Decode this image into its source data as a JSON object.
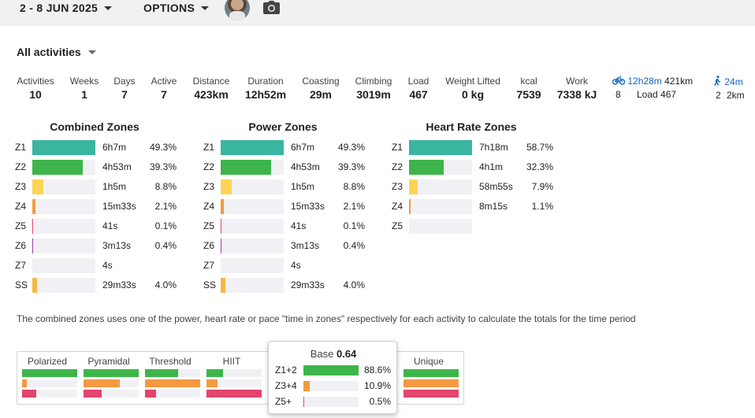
{
  "header": {
    "date_range": "2 - 8 JUN 2025",
    "options_label": "OPTIONS"
  },
  "filter": {
    "label": "All activities"
  },
  "stats": [
    {
      "label": "Activities",
      "value": "10"
    },
    {
      "label": "Weeks",
      "value": "1"
    },
    {
      "label": "Days",
      "value": "7"
    },
    {
      "label": "Active",
      "value": "7"
    },
    {
      "label": "Distance",
      "value": "423km"
    },
    {
      "label": "Duration",
      "value": "12h52m"
    },
    {
      "label": "Coasting",
      "value": "29m"
    },
    {
      "label": "Climbing",
      "value": "3019m"
    },
    {
      "label": "Load",
      "value": "467"
    },
    {
      "label": "Weight Lifted",
      "value": "0 kg"
    },
    {
      "label": "kcal",
      "value": "7539"
    },
    {
      "label": "Work",
      "value": "7338 kJ"
    }
  ],
  "sports": {
    "ride": {
      "icon": "bike-icon",
      "time": "12h28m",
      "distance": "421km",
      "count": "8",
      "load": "Load 467"
    },
    "walk": {
      "icon": "walk-icon",
      "time": "24m",
      "count": "2",
      "distance": "2km"
    }
  },
  "zones": {
    "combined": {
      "title": "Combined Zones",
      "rows": [
        {
          "zone": "Z1",
          "time": "6h7m",
          "pct": "49.3%",
          "level": 1.0,
          "color": "#3ab5a0"
        },
        {
          "zone": "Z2",
          "time": "4h53m",
          "pct": "39.3%",
          "level": 0.8,
          "color": "#3db54a"
        },
        {
          "zone": "Z3",
          "time": "1h5m",
          "pct": "8.8%",
          "level": 0.18,
          "color": "#fcd455"
        },
        {
          "zone": "Z4",
          "time": "15m33s",
          "pct": "2.1%",
          "level": 0.05,
          "color": "#f39a42"
        },
        {
          "zone": "Z5",
          "time": "41s",
          "pct": "0.1%",
          "level": 0.012,
          "color": "#e2456d"
        },
        {
          "zone": "Z6",
          "time": "3m13s",
          "pct": "0.4%",
          "level": 0.015,
          "color": "#9c3aa8"
        },
        {
          "zone": "Z7",
          "time": "4s",
          "pct": "",
          "level": 0.0,
          "color": "#444444"
        },
        {
          "zone": "SS",
          "time": "29m33s",
          "pct": "4.0%",
          "level": 0.08,
          "color": "#f5b942"
        }
      ]
    },
    "power": {
      "title": "Power Zones",
      "rows": [
        {
          "zone": "Z1",
          "time": "6h7m",
          "pct": "49.3%",
          "level": 1.0,
          "color": "#3ab5a0"
        },
        {
          "zone": "Z2",
          "time": "4h53m",
          "pct": "39.3%",
          "level": 0.8,
          "color": "#3db54a"
        },
        {
          "zone": "Z3",
          "time": "1h5m",
          "pct": "8.8%",
          "level": 0.18,
          "color": "#fcd455"
        },
        {
          "zone": "Z4",
          "time": "15m33s",
          "pct": "2.1%",
          "level": 0.05,
          "color": "#f39a42"
        },
        {
          "zone": "Z5",
          "time": "41s",
          "pct": "0.1%",
          "level": 0.012,
          "color": "#e2456d"
        },
        {
          "zone": "Z6",
          "time": "3m13s",
          "pct": "0.4%",
          "level": 0.015,
          "color": "#9c3aa8"
        },
        {
          "zone": "Z7",
          "time": "4s",
          "pct": "",
          "level": 0.0,
          "color": "#444444"
        },
        {
          "zone": "SS",
          "time": "29m33s",
          "pct": "4.0%",
          "level": 0.08,
          "color": "#f5b942"
        }
      ]
    },
    "heart_rate": {
      "title": "Heart Rate Zones",
      "rows": [
        {
          "zone": "Z1",
          "time": "7h18m",
          "pct": "58.7%",
          "level": 1.0,
          "color": "#3ab5a0"
        },
        {
          "zone": "Z2",
          "time": "4h1m",
          "pct": "32.3%",
          "level": 0.55,
          "color": "#3db54a"
        },
        {
          "zone": "Z3",
          "time": "58m55s",
          "pct": "7.9%",
          "level": 0.135,
          "color": "#fcd455"
        },
        {
          "zone": "Z4",
          "time": "8m15s",
          "pct": "1.1%",
          "level": 0.02,
          "color": "#f39a42"
        },
        {
          "zone": "Z5",
          "time": "",
          "pct": "",
          "level": 0.0,
          "color": "#e2456d"
        }
      ]
    }
  },
  "note": "The combined zones uses one of the power, heart rate or pace \"time in zones\" respectively for each activity to calculate the totals for the time period",
  "distribution": {
    "columns": [
      {
        "label": "Polarized",
        "bars": [
          {
            "level": 1.0,
            "color": "#3db54a"
          },
          {
            "level": 0.08,
            "color": "#f39a42"
          },
          {
            "level": 0.26,
            "color": "#e2456d"
          }
        ]
      },
      {
        "label": "Pyramidal",
        "bars": [
          {
            "level": 1.0,
            "color": "#3db54a"
          },
          {
            "level": 0.66,
            "color": "#f39a42"
          },
          {
            "level": 0.33,
            "color": "#e2456d"
          }
        ]
      },
      {
        "label": "Threshold",
        "bars": [
          {
            "level": 0.6,
            "color": "#3db54a"
          },
          {
            "level": 1.0,
            "color": "#f39a42"
          },
          {
            "level": 0.2,
            "color": "#e2456d"
          }
        ]
      },
      {
        "label": "HIIT",
        "bars": [
          {
            "level": 0.3,
            "color": "#3db54a"
          },
          {
            "level": 0.2,
            "color": "#f39a42"
          },
          {
            "level": 1.0,
            "color": "#e2456d"
          }
        ]
      },
      {
        "label": "Unique",
        "bars": [
          {
            "level": 1.0,
            "color": "#3db54a"
          },
          {
            "level": 1.0,
            "color": "#f39a42"
          },
          {
            "level": 1.0,
            "color": "#e2456d"
          }
        ]
      }
    ],
    "tooltip": {
      "title": "Base",
      "score": "0.64",
      "rows": [
        {
          "label": "Z1+2",
          "pct": "88.6%",
          "level": 1.0,
          "color": "#3db54a"
        },
        {
          "label": "Z3+4",
          "pct": "10.9%",
          "level": 0.12,
          "color": "#f39a42"
        },
        {
          "label": "Z5+",
          "pct": "0.5%",
          "level": 0.01,
          "color": "#e2456d"
        }
      ]
    }
  }
}
